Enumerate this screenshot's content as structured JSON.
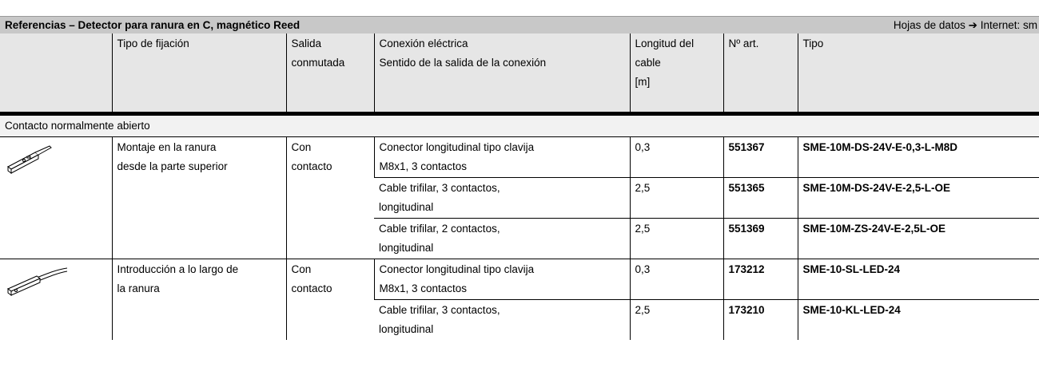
{
  "header": {
    "title": "Referencias – Detector para ranura en C, magnético Reed",
    "datasheet_link": "Hojas de datos ➔ Internet: sm"
  },
  "table": {
    "columns": [
      [
        "Tipo de fijación"
      ],
      [
        "Salida",
        "conmutada"
      ],
      [
        "Conexión eléctrica",
        "Sentido de la salida de la conexión"
      ],
      [
        "Longitud del",
        "cable",
        "[m]"
      ],
      [
        "Nº art."
      ],
      [
        "Tipo"
      ]
    ],
    "section": "Contacto normalmente abierto",
    "groups": [
      {
        "mounting": [
          "Montaje en la ranura",
          "desde la parte superior"
        ],
        "output": [
          "Con",
          "contacto"
        ],
        "rows": [
          {
            "connection": [
              "Conector longitudinal tipo clavija",
              "M8x1, 3 contactos"
            ],
            "length": "0,3",
            "part_no": "551367",
            "type": "SME-10M-DS-24V-E-0,3-L-M8D"
          },
          {
            "connection": [
              "Cable trifilar, 3 contactos,",
              "longitudinal"
            ],
            "length": "2,5",
            "part_no": "551365",
            "type": "SME-10M-DS-24V-E-2,5-L-OE"
          },
          {
            "connection": [
              "Cable trifilar, 2 contactos,",
              "longitudinal"
            ],
            "length": "2,5",
            "part_no": "551369",
            "type": "SME-10M-ZS-24V-E-2,5L-OE"
          }
        ]
      },
      {
        "mounting": [
          "Introducción a lo largo de",
          "la ranura"
        ],
        "output": [
          "Con",
          "contacto"
        ],
        "rows": [
          {
            "connection": [
              "Conector longitudinal tipo clavija",
              "M8x1, 3 contactos"
            ],
            "length": "0,3",
            "part_no": "173212",
            "type": "SME-10-SL-LED-24"
          },
          {
            "connection": [
              "Cable trifilar, 3 contactos,",
              "longitudinal"
            ],
            "length": "2,5",
            "part_no": "173210",
            "type": "SME-10-KL-LED-24"
          }
        ]
      }
    ]
  }
}
